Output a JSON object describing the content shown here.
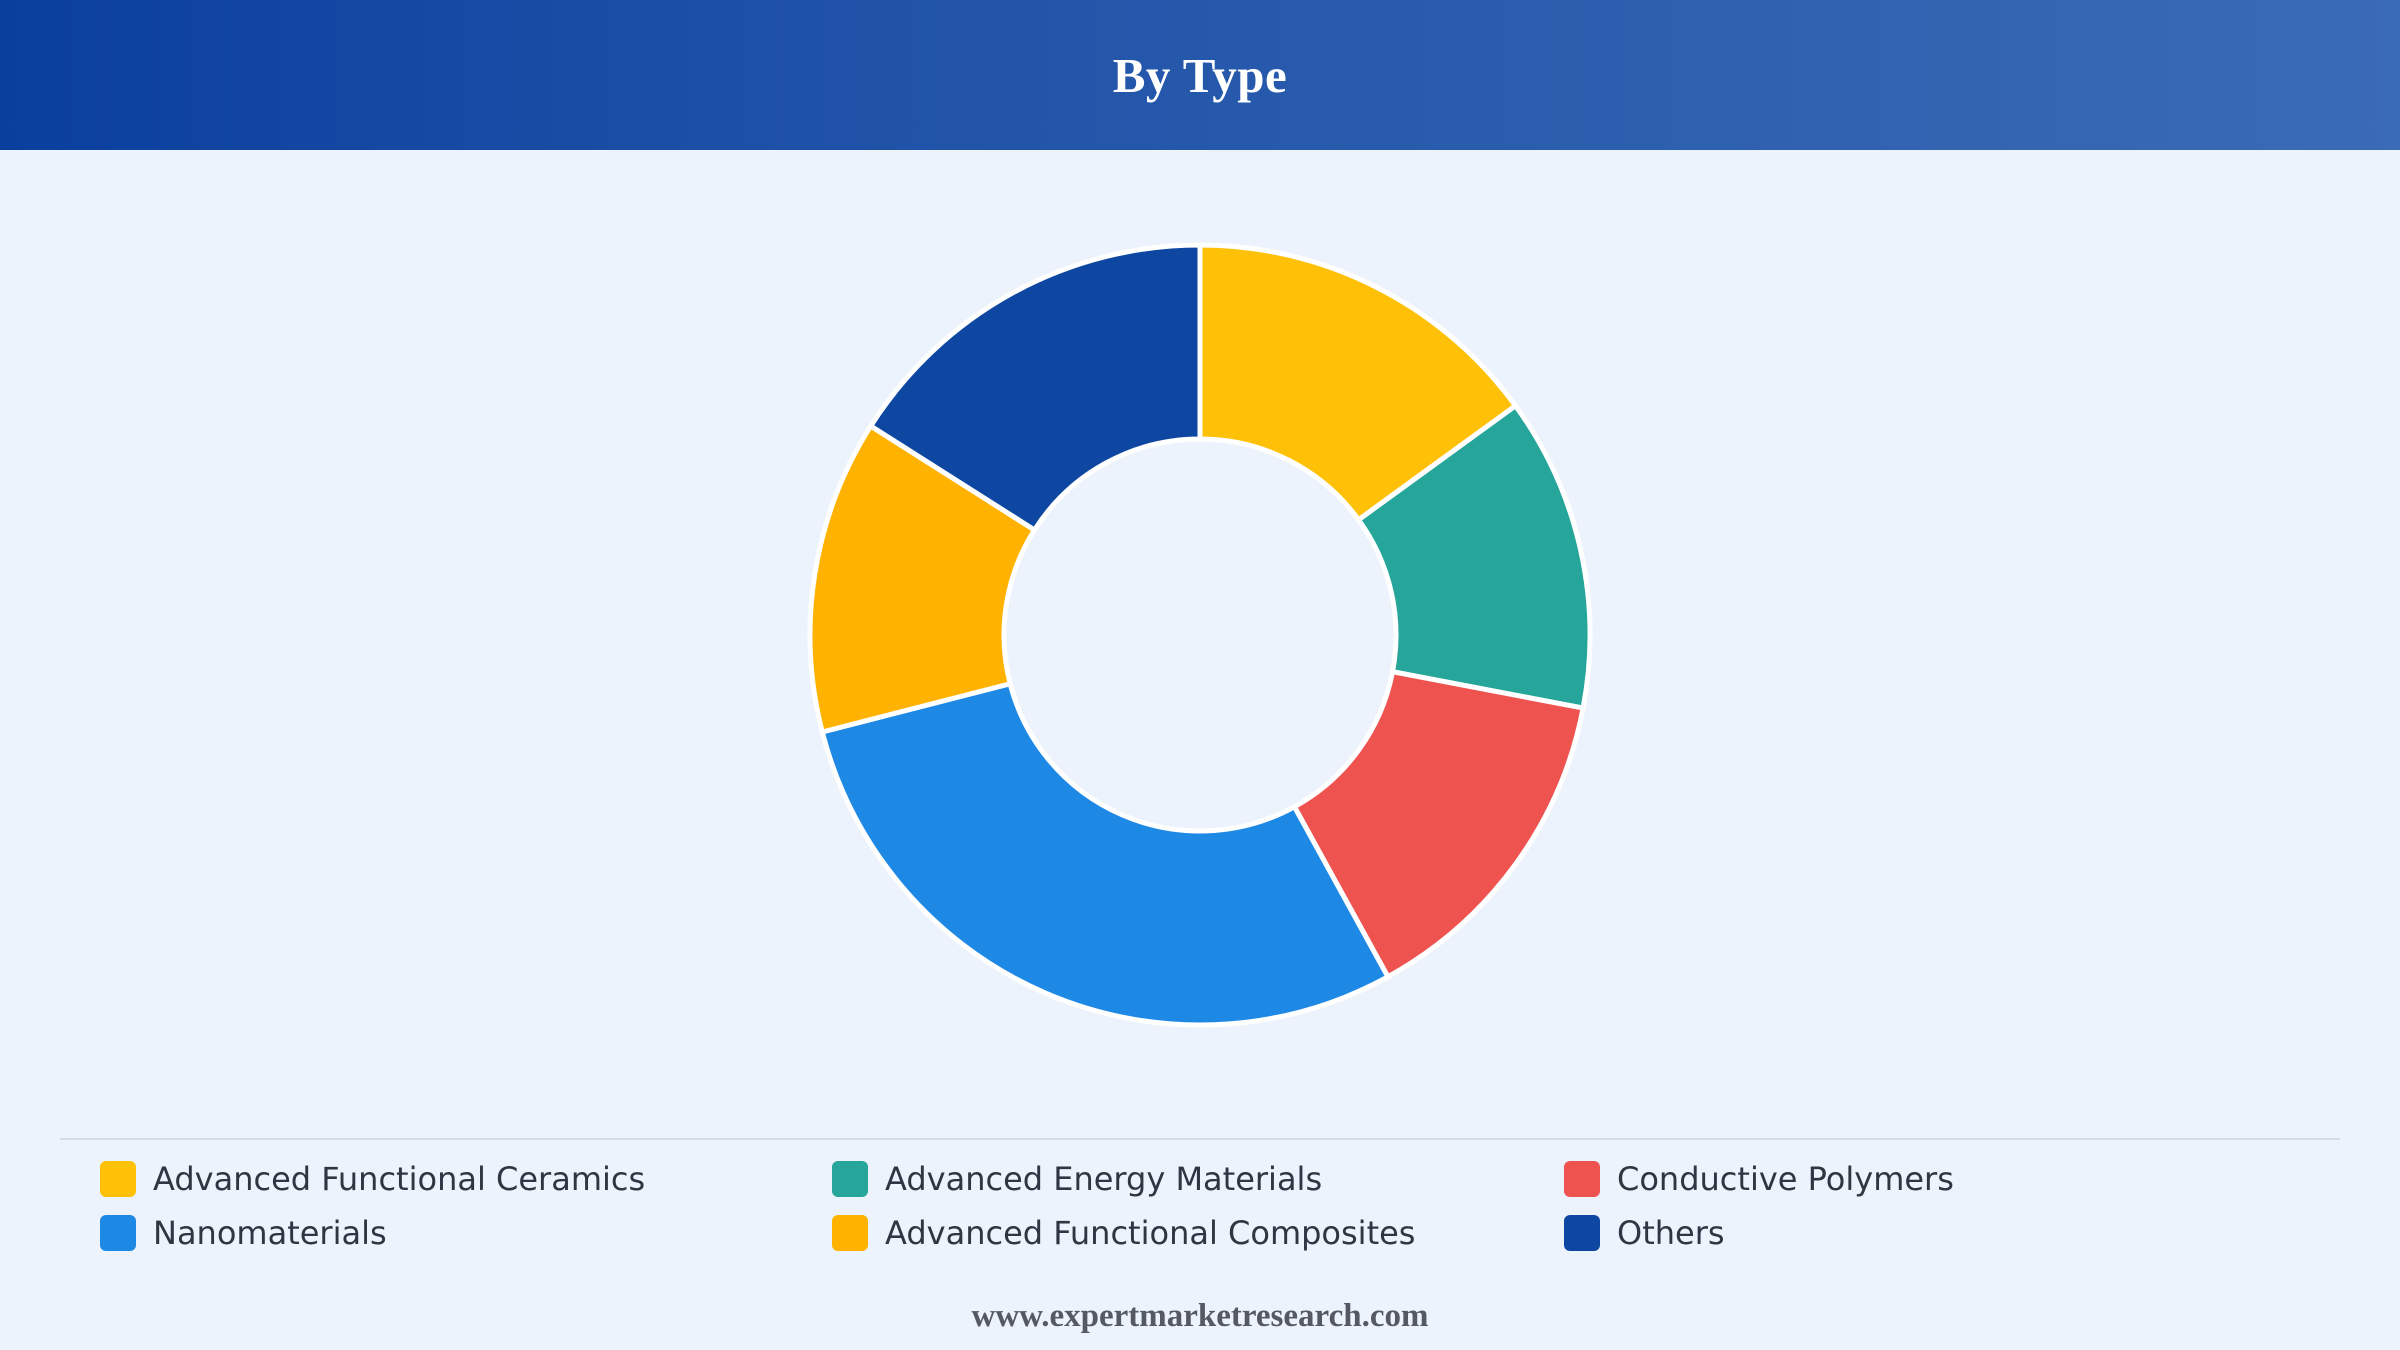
{
  "header": {
    "title": "By Type"
  },
  "colors": {
    "header_start": "#0b3f9e",
    "header_end": "#3a6bb6",
    "background": "#ecf3fc"
  },
  "chart_data": {
    "type": "pie",
    "title": "By Type",
    "donut": true,
    "legend_position": "bottom",
    "categories": [
      "Advanced Functional Ceramics",
      "Advanced Energy Materials",
      "Conductive Polymers",
      "Nanomaterials",
      "Advanced Functional Composites",
      "Others"
    ],
    "values": [
      15,
      13,
      14,
      29,
      13,
      16
    ],
    "colors": [
      "#ffc107",
      "#26a69a",
      "#ef5350",
      "#1e88e5",
      "#ffb300",
      "#0d47a1"
    ]
  },
  "footer": {
    "source": "www.expertmarketresearch.com"
  }
}
